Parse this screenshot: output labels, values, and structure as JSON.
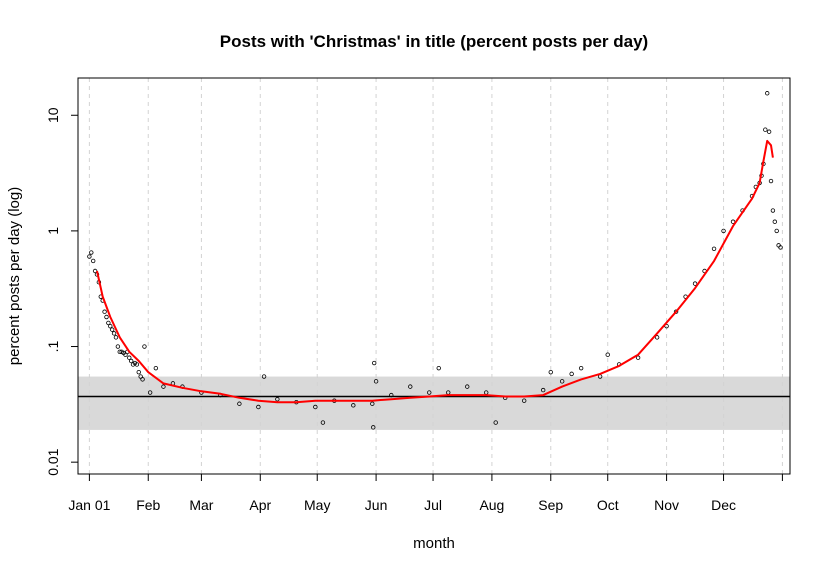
{
  "chart_data": {
    "type": "scatter",
    "title": "Posts with 'Christmas' in title (percent posts per day)",
    "xlabel": "month",
    "ylabel": "percent posts per day (log)",
    "y_scale": "log",
    "ylim": [
      0.0079,
      21
    ],
    "xlim": [
      -5,
      370
    ],
    "x_ticks": [
      {
        "label": "Jan 01",
        "day": 1
      },
      {
        "label": "Feb",
        "day": 32
      },
      {
        "label": "Mar",
        "day": 60
      },
      {
        "label": "Apr",
        "day": 91
      },
      {
        "label": "May",
        "day": 121
      },
      {
        "label": "Jun",
        "day": 152
      },
      {
        "label": "Jul",
        "day": 182
      },
      {
        "label": "Aug",
        "day": 213
      },
      {
        "label": "Sep",
        "day": 244
      },
      {
        "label": "Oct",
        "day": 274
      },
      {
        "label": "Nov",
        "day": 305
      },
      {
        "label": "Dec",
        "day": 335
      },
      {
        "label": "",
        "day": 366
      }
    ],
    "y_ticks": [
      {
        "label": "0.01",
        "value": 0.01
      },
      {
        "label": ".1",
        "value": 0.1
      },
      {
        "label": "1",
        "value": 1
      },
      {
        "label": "10",
        "value": 10
      }
    ],
    "grid": "vertical-dashed",
    "baseline": {
      "value": 0.037,
      "band_low": 0.019,
      "band_high": 0.055,
      "band_color": "#d9d9d9"
    },
    "series": [
      {
        "kind": "points",
        "x": [
          1,
          2,
          3,
          4,
          5,
          6,
          7,
          8,
          9,
          10,
          11,
          12,
          13,
          14,
          15,
          16,
          17,
          18,
          19,
          20,
          21,
          22,
          23,
          24,
          25,
          26,
          27,
          28,
          29,
          30,
          33,
          36,
          40,
          45,
          50,
          60,
          70,
          80,
          90,
          93,
          100,
          110,
          120,
          124,
          130,
          140,
          150,
          150.5,
          151,
          152,
          160,
          170,
          180,
          185,
          190,
          200,
          210,
          215,
          220,
          230,
          240,
          244,
          250,
          255,
          260,
          270,
          274,
          280,
          290,
          300,
          305,
          310,
          315,
          320,
          325,
          330,
          335,
          340,
          345,
          350,
          352,
          354,
          355,
          356,
          357,
          358,
          359,
          360,
          361,
          362,
          363,
          364,
          365
        ],
        "y": [
          0.6,
          0.65,
          0.55,
          0.45,
          0.42,
          0.36,
          0.27,
          0.25,
          0.2,
          0.18,
          0.16,
          0.15,
          0.14,
          0.13,
          0.12,
          0.1,
          0.09,
          0.09,
          0.088,
          0.085,
          0.09,
          0.08,
          0.075,
          0.07,
          0.072,
          0.07,
          0.06,
          0.055,
          0.052,
          0.1,
          0.04,
          0.065,
          0.045,
          0.048,
          0.045,
          0.04,
          0.038,
          0.032,
          0.03,
          0.055,
          0.035,
          0.033,
          0.03,
          0.022,
          0.034,
          0.031,
          0.032,
          0.02,
          0.072,
          0.05,
          0.038,
          0.045,
          0.04,
          0.065,
          0.04,
          0.045,
          0.04,
          0.022,
          0.036,
          0.034,
          0.042,
          0.06,
          0.05,
          0.058,
          0.065,
          0.055,
          0.085,
          0.07,
          0.08,
          0.12,
          0.15,
          0.2,
          0.27,
          0.35,
          0.45,
          0.7,
          1.0,
          1.2,
          1.5,
          2.0,
          2.4,
          2.6,
          3.0,
          3.8,
          7.5,
          15.5,
          7.2,
          2.7,
          1.5,
          1.2,
          1.0,
          0.75,
          0.72
        ]
      },
      {
        "kind": "smooth",
        "color": "#ff0000",
        "x": [
          5,
          8,
          12,
          17,
          22,
          27,
          32,
          40,
          50,
          60,
          70,
          80,
          90,
          100,
          110,
          120,
          130,
          140,
          150,
          160,
          170,
          180,
          190,
          200,
          210,
          220,
          230,
          240,
          250,
          260,
          270,
          280,
          290,
          300,
          310,
          320,
          330,
          340,
          350,
          354,
          356,
          358,
          360,
          361
        ],
        "y": [
          0.45,
          0.27,
          0.18,
          0.12,
          0.09,
          0.075,
          0.06,
          0.048,
          0.044,
          0.041,
          0.039,
          0.036,
          0.034,
          0.033,
          0.033,
          0.034,
          0.034,
          0.034,
          0.034,
          0.035,
          0.036,
          0.037,
          0.038,
          0.038,
          0.038,
          0.037,
          0.037,
          0.038,
          0.045,
          0.052,
          0.058,
          0.068,
          0.085,
          0.13,
          0.2,
          0.32,
          0.55,
          1.1,
          1.9,
          2.6,
          4.0,
          6.0,
          5.5,
          4.3
        ]
      }
    ]
  }
}
